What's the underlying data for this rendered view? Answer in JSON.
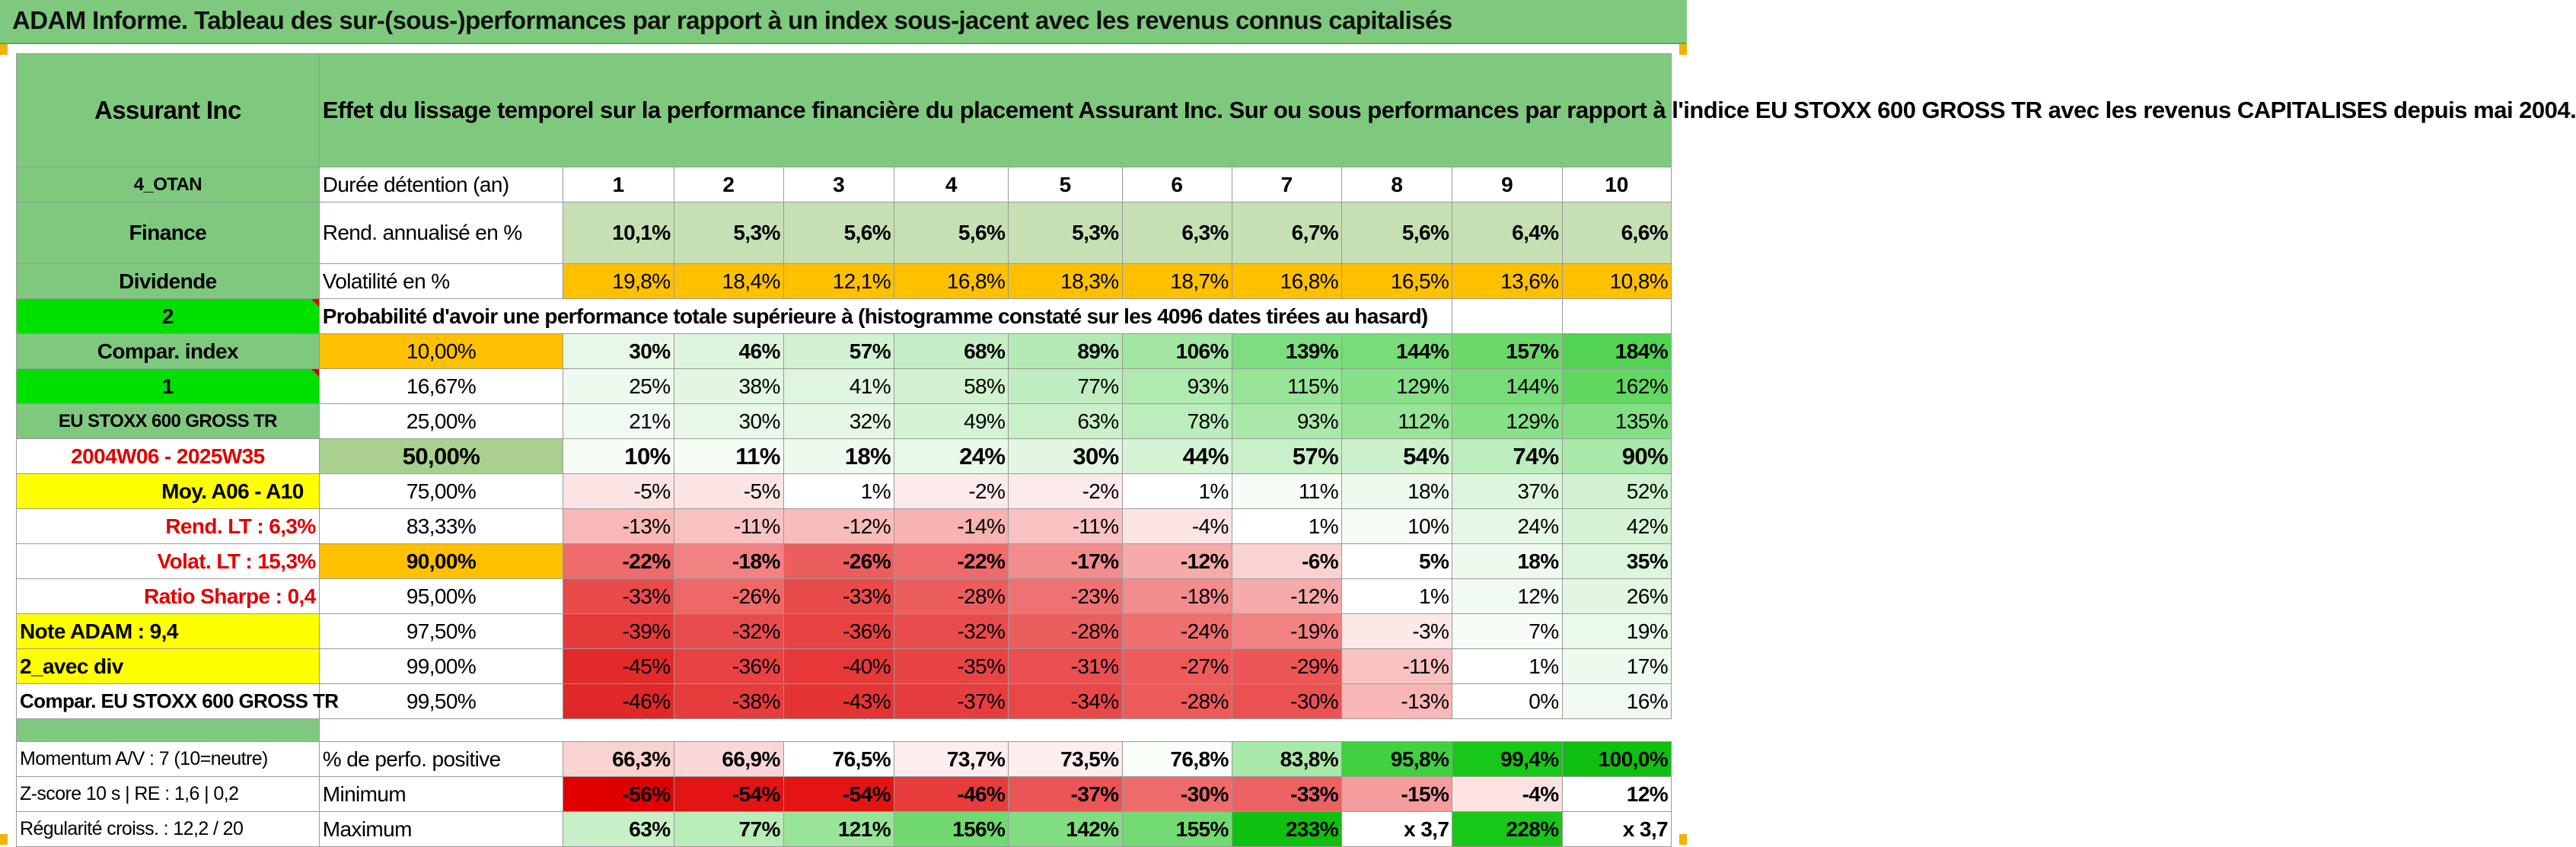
{
  "banner": {
    "title": "ADAM Informe. Tableau des sur-(sous-)performances par rapport à un index sous-jacent avec les revenus connus capitalisés"
  },
  "header": {
    "company": "Assurant Inc",
    "description": "Effet du lissage temporel sur la performance financière du placement Assurant Inc. Sur ou sous performances par rapport à l'indice EU STOXX 600 GROSS TR avec les revenus CAPITALISES depuis mai 2004."
  },
  "stats": {
    "row_labels": {
      "horizon": "Durée détention (an)",
      "return": "Rend. annualisé en %",
      "volatility": "Volatilité en %"
    },
    "years": [
      "1",
      "2",
      "3",
      "4",
      "5",
      "6",
      "7",
      "8",
      "9",
      "10"
    ],
    "returns": [
      "10,1%",
      "5,3%",
      "5,6%",
      "5,6%",
      "5,3%",
      "6,3%",
      "6,7%",
      "5,6%",
      "6,4%",
      "6,6%"
    ],
    "volatility": [
      "19,8%",
      "18,4%",
      "12,1%",
      "16,8%",
      "18,3%",
      "18,7%",
      "16,8%",
      "16,5%",
      "13,6%",
      "10,8%"
    ]
  },
  "left_labels": {
    "code": "4_OTAN",
    "sector": "Finance",
    "type": "Dividende",
    "mode": "2",
    "compar_index": "Compar. index",
    "index_no": "1",
    "index_name": "EU STOXX 600 GROSS TR",
    "period": "2004W06 - 2025W35",
    "moy": "Moy. A06 - A10",
    "rend_lt": "Rend. LT :    6,3%",
    "volat_lt": "Volat. LT :    15,3%",
    "sharpe": "Ratio Sharpe :    0,4",
    "note": "Note ADAM : 9,4",
    "avec_div": "2_avec div",
    "compar_full": "Compar. EU STOXX 600 GROSS TR"
  },
  "probability_title": "Probabilité d'avoir une performance totale supérieure à (histogramme constaté sur les 4096 dates tirées au hasard)",
  "distribution": [
    {
      "p": "10,00%",
      "v": [
        "30%",
        "46%",
        "57%",
        "68%",
        "89%",
        "106%",
        "139%",
        "144%",
        "157%",
        "184%"
      ]
    },
    {
      "p": "16,67%",
      "v": [
        "25%",
        "38%",
        "41%",
        "58%",
        "77%",
        "93%",
        "115%",
        "129%",
        "144%",
        "162%"
      ]
    },
    {
      "p": "25,00%",
      "v": [
        "21%",
        "30%",
        "32%",
        "49%",
        "63%",
        "78%",
        "93%",
        "112%",
        "129%",
        "135%"
      ]
    },
    {
      "p": "50,00%",
      "v": [
        "10%",
        "11%",
        "18%",
        "24%",
        "30%",
        "44%",
        "57%",
        "54%",
        "74%",
        "90%"
      ]
    },
    {
      "p": "75,00%",
      "v": [
        "-5%",
        "-5%",
        "1%",
        "-2%",
        "-2%",
        "1%",
        "11%",
        "18%",
        "37%",
        "52%"
      ]
    },
    {
      "p": "83,33%",
      "v": [
        "-13%",
        "-11%",
        "-12%",
        "-14%",
        "-11%",
        "-4%",
        "1%",
        "10%",
        "24%",
        "42%"
      ]
    },
    {
      "p": "90,00%",
      "v": [
        "-22%",
        "-18%",
        "-26%",
        "-22%",
        "-17%",
        "-12%",
        "-6%",
        "5%",
        "18%",
        "35%"
      ]
    },
    {
      "p": "95,00%",
      "v": [
        "-33%",
        "-26%",
        "-33%",
        "-28%",
        "-23%",
        "-18%",
        "-12%",
        "1%",
        "12%",
        "26%"
      ]
    },
    {
      "p": "97,50%",
      "v": [
        "-39%",
        "-32%",
        "-36%",
        "-32%",
        "-28%",
        "-24%",
        "-19%",
        "-3%",
        "7%",
        "19%"
      ]
    },
    {
      "p": "99,00%",
      "v": [
        "-45%",
        "-36%",
        "-40%",
        "-35%",
        "-31%",
        "-27%",
        "-29%",
        "-11%",
        "1%",
        "17%"
      ]
    },
    {
      "p": "99,50%",
      "v": [
        "-46%",
        "-38%",
        "-43%",
        "-37%",
        "-34%",
        "-28%",
        "-30%",
        "-13%",
        "0%",
        "16%"
      ]
    }
  ],
  "bottom": {
    "momentum": "Momentum A/V : 7 (10=neutre)",
    "zscore": "Z-score 10 s | RE : 1,6 | 0,2",
    "regularity": "Régularité croiss. : 12,2 / 20",
    "positive_label": "% de perfo. positive",
    "positive": [
      "66,3%",
      "66,9%",
      "76,5%",
      "73,7%",
      "73,5%",
      "76,8%",
      "83,8%",
      "95,8%",
      "99,4%",
      "100,0%"
    ],
    "minimum_label": "Minimum",
    "minimum": [
      "-56%",
      "-54%",
      "-54%",
      "-46%",
      "-37%",
      "-30%",
      "-33%",
      "-15%",
      "-4%",
      "12%"
    ],
    "maximum_label": "Maximum",
    "maximum": [
      "63%",
      "77%",
      "121%",
      "156%",
      "142%",
      "155%",
      "233%",
      "x 3,7",
      "228%",
      "x 3,7"
    ]
  },
  "colors": {
    "header_green": "#7fc97f",
    "bright_green": "#00e000",
    "orange": "#ffc000",
    "yellow": "#ffff00",
    "label_red": "#e00000",
    "ret_green": "#c6e0b4"
  }
}
